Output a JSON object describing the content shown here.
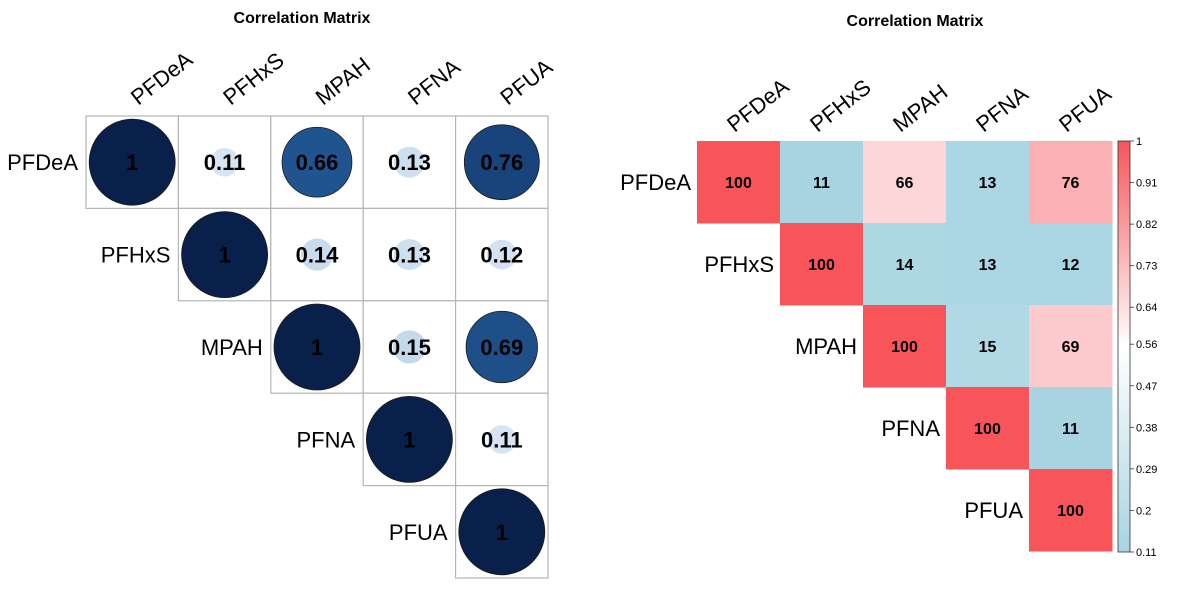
{
  "chart_data": [
    {
      "type": "heatmap",
      "style": "circle-correlation-upper-triangle",
      "title": "Correlation Matrix",
      "variables": [
        "PFDeA",
        "PFHxS",
        "MPAH",
        "PFNA",
        "PFUA"
      ],
      "matrix": [
        [
          1,
          0.11,
          0.66,
          0.13,
          0.76
        ],
        [
          null,
          1,
          0.14,
          0.13,
          0.12
        ],
        [
          null,
          null,
          1,
          0.15,
          0.69
        ],
        [
          null,
          null,
          null,
          1,
          0.11
        ],
        [
          null,
          null,
          null,
          null,
          1
        ]
      ],
      "value_labels": [
        [
          "1",
          "0.11",
          "0.66",
          "0.13",
          "0.76"
        ],
        [
          null,
          "1",
          "0.14",
          "0.13",
          "0.12"
        ],
        [
          null,
          null,
          "1",
          "0.15",
          "0.69"
        ],
        [
          null,
          null,
          null,
          "1",
          "0.11"
        ],
        [
          null,
          null,
          null,
          null,
          "1"
        ]
      ],
      "colors": {
        "high": "#08204a",
        "mid": "#2b6cb0",
        "low": "#dbe8f4"
      }
    },
    {
      "type": "heatmap",
      "style": "tile-upper-triangle",
      "title": "Correlation Matrix",
      "variables": [
        "PFDeA",
        "PFHxS",
        "MPAH",
        "PFNA",
        "PFUA"
      ],
      "matrix": [
        [
          100,
          11,
          66,
          13,
          76
        ],
        [
          null,
          100,
          14,
          13,
          12
        ],
        [
          null,
          null,
          100,
          15,
          69
        ],
        [
          null,
          null,
          null,
          100,
          11
        ],
        [
          null,
          null,
          null,
          null,
          100
        ]
      ],
      "colorbar": {
        "min": 0.11,
        "max": 1,
        "ticks": [
          "1",
          "0.91",
          "0.82",
          "0.73",
          "0.64",
          "0.56",
          "0.47",
          "0.38",
          "0.29",
          "0.2",
          "0.11"
        ],
        "tick_values": [
          1,
          0.91,
          0.82,
          0.73,
          0.64,
          0.56,
          0.47,
          0.38,
          0.29,
          0.2,
          0.11
        ]
      },
      "colors": {
        "high": "#f7555a",
        "mid": "#ffffff",
        "low": "#a8d4e2"
      }
    }
  ]
}
